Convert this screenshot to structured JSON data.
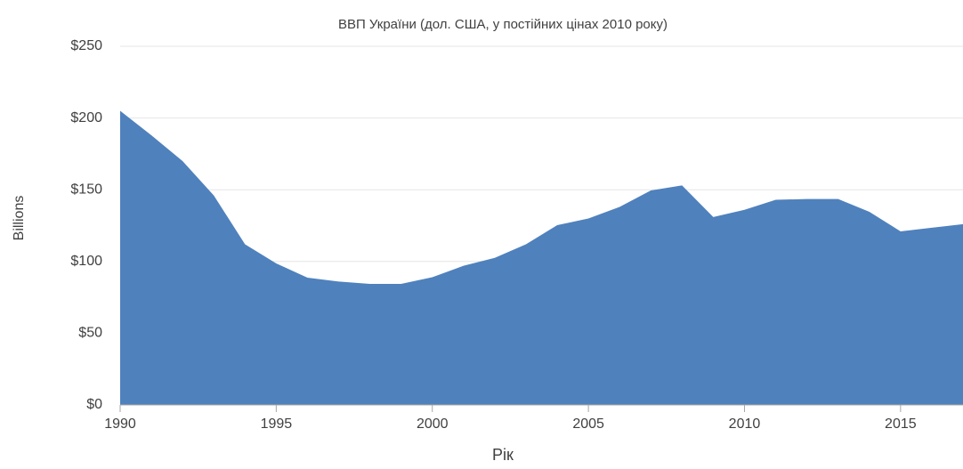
{
  "chart_data": {
    "type": "area",
    "title": "ВВП України (дол. США, у постійних цінах 2010 року)",
    "xlabel": "Рік",
    "ylabel": "Billions",
    "x": [
      1990,
      1991,
      1992,
      1993,
      1994,
      1995,
      1996,
      1997,
      1998,
      1999,
      2000,
      2001,
      2002,
      2003,
      2004,
      2005,
      2006,
      2007,
      2008,
      2009,
      2010,
      2011,
      2012,
      2013,
      2014,
      2015,
      2016,
      2017
    ],
    "values": [
      205,
      188,
      170,
      146,
      112,
      98.6,
      88.7,
      86,
      84.4,
      84.4,
      89,
      97,
      102.5,
      112,
      125.3,
      130,
      138,
      149.5,
      153,
      131,
      136,
      143,
      143.5,
      143.5,
      134.6,
      121,
      123.5,
      126
    ],
    "color": "#4f81bd",
    "xlim": [
      1990,
      2017
    ],
    "xticks": [
      1990,
      1995,
      2000,
      2005,
      2010,
      2015
    ],
    "ylim": [
      0,
      250
    ],
    "yticks": [
      {
        "value": 0,
        "label": "$0"
      },
      {
        "value": 50,
        "label": "$50"
      },
      {
        "value": 100,
        "label": "$100"
      },
      {
        "value": 150,
        "label": "$150"
      },
      {
        "value": 200,
        "label": "$200"
      },
      {
        "value": 250,
        "label": "$250"
      }
    ],
    "grid": true
  }
}
